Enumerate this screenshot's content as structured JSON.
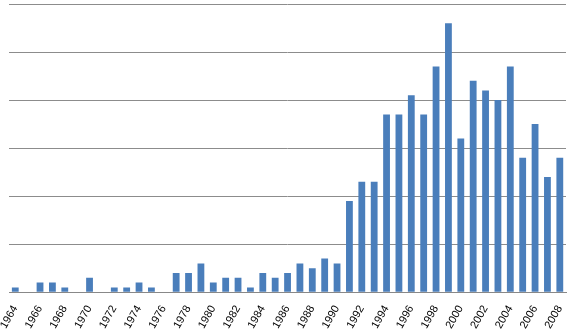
{
  "chart_data": {
    "type": "bar",
    "categories": [
      "1964",
      null,
      "1966",
      null,
      "1968",
      null,
      "1970",
      null,
      "1972",
      null,
      "1974",
      null,
      "1976",
      null,
      "1978",
      null,
      "1980",
      null,
      "1982",
      null,
      "1984",
      null,
      "1986",
      null,
      "1988",
      null,
      "1990",
      null,
      "1992",
      null,
      "1994",
      null,
      "1996",
      null,
      "1998",
      null,
      "2000",
      null,
      "2002",
      null,
      "2004",
      null,
      "2006",
      null,
      "2008"
    ],
    "values": [
      1,
      0,
      2,
      2,
      1,
      0,
      3,
      0,
      1,
      1,
      2,
      1,
      0,
      4,
      4,
      6,
      2,
      3,
      3,
      1,
      4,
      3,
      4,
      6,
      5,
      7,
      6,
      19,
      23,
      23,
      37,
      37,
      41,
      37,
      47,
      56,
      32,
      44,
      42,
      40,
      47,
      28,
      35,
      24,
      28
    ],
    "color": "#4a7ebb",
    "ylim": [
      0,
      60
    ],
    "yticks": [
      0,
      10,
      20,
      30,
      40,
      50,
      60
    ],
    "grid": true,
    "tick_labels": "x"
  }
}
